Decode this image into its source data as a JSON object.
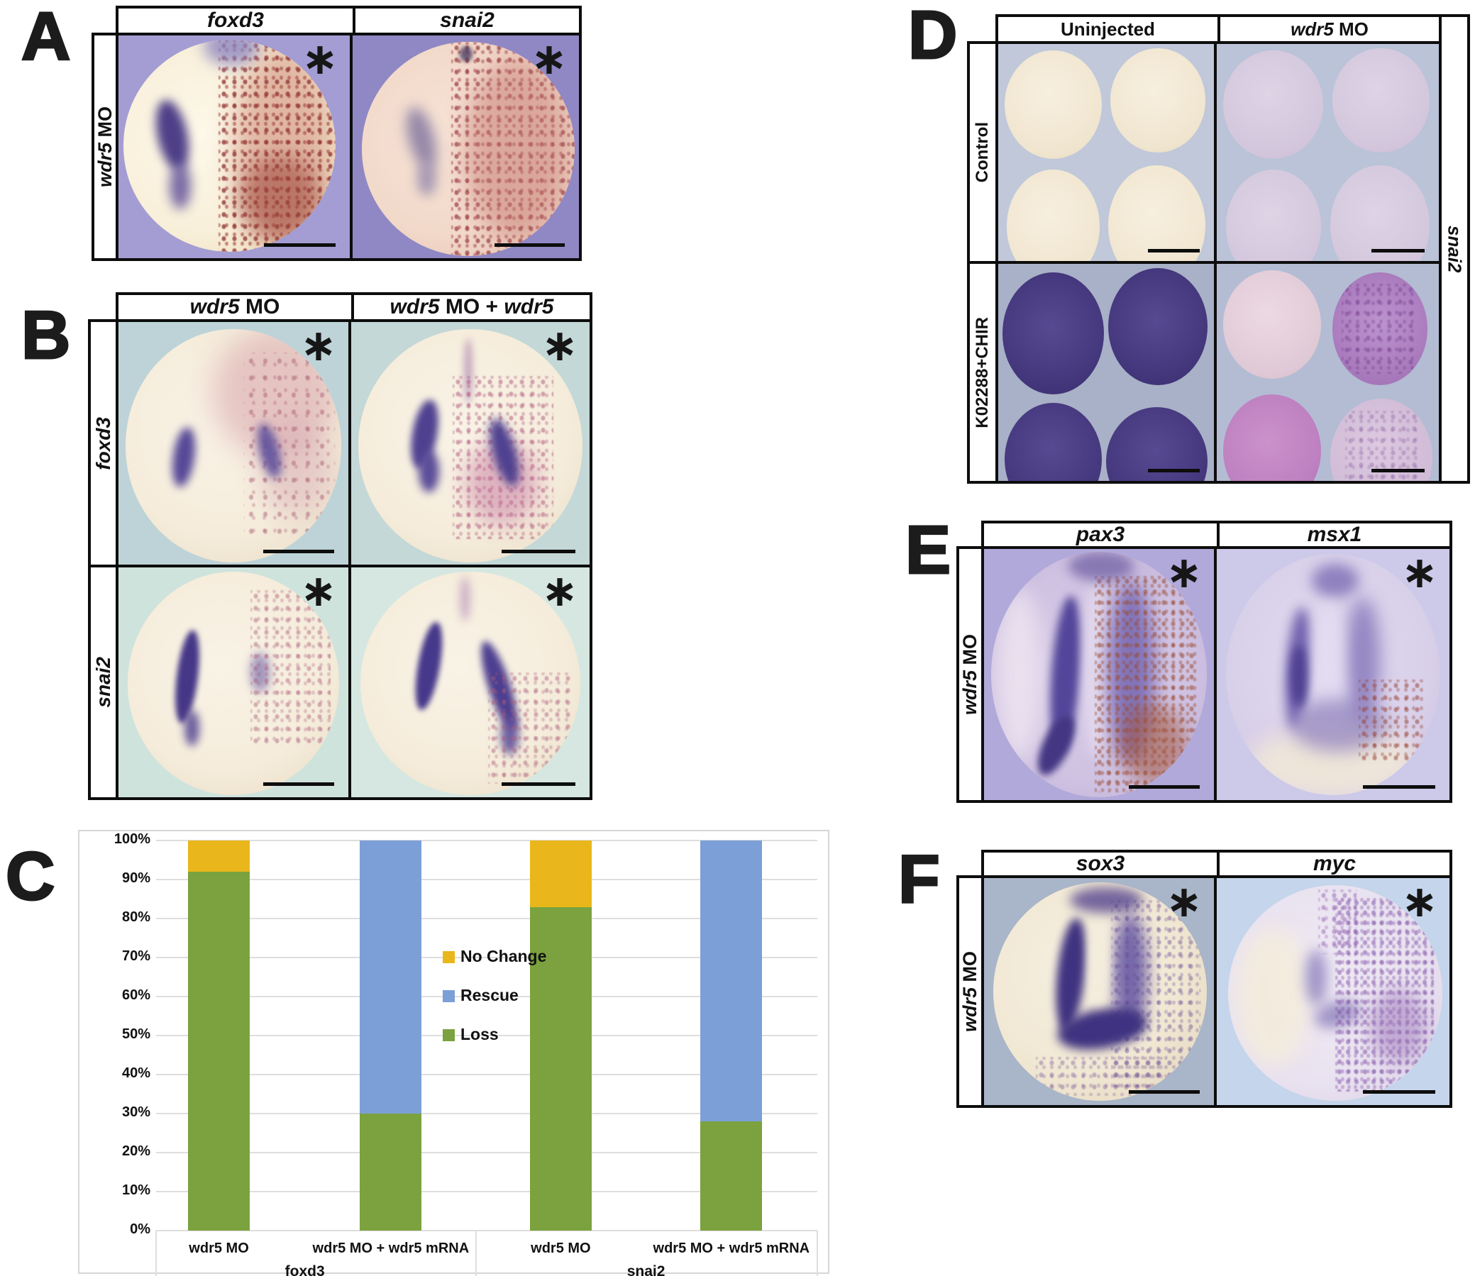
{
  "panel_a": {
    "label": "A",
    "columns": [
      "foxd3",
      "snai2"
    ],
    "row_gene": "wdr5",
    "row_suffix": " MO"
  },
  "panel_b": {
    "label": "B",
    "col1_gene": "wdr5",
    "col1_suffix": " MO",
    "col2_gene1": "wdr5",
    "col2_mid": " MO + ",
    "col2_gene2": "wdr5",
    "rows": [
      "foxd3",
      "snai2"
    ]
  },
  "panel_c": {
    "label": "C"
  },
  "panel_d": {
    "label": "D",
    "col1": "Uninjected",
    "col2_gene": "wdr5",
    "col2_suffix": " MO",
    "row1": "Control",
    "row2": "K02288+CHIR",
    "side_label": "snai2"
  },
  "panel_e": {
    "label": "E",
    "columns": [
      "pax3",
      "msx1"
    ],
    "row_gene": "wdr5",
    "row_suffix": " MO"
  },
  "panel_f": {
    "label": "F",
    "columns": [
      "sox3",
      "myc"
    ],
    "row_gene": "wdr5",
    "row_suffix": " MO"
  },
  "marks": {
    "asterisk": "∗"
  },
  "chart_data": {
    "type": "bar",
    "subtype": "100%-stacked-column",
    "title": "",
    "xlabel": "",
    "ylabel": "",
    "ylim": [
      0,
      100
    ],
    "grid": true,
    "gridline_color": "#dedede",
    "y_ticks": [
      "0%",
      "10%",
      "20%",
      "30%",
      "40%",
      "50%",
      "60%",
      "70%",
      "80%",
      "90%",
      "100%"
    ],
    "categories": [
      "wdr5 MO",
      "wdr5 MO + wdr5 mRNA",
      "wdr5 MO",
      "wdr5 MO + wdr5 mRNA"
    ],
    "groups": [
      {
        "label": "foxd3",
        "categories": [
          "wdr5 MO",
          "wdr5 MO + wdr5 mRNA"
        ]
      },
      {
        "label": "snai2",
        "categories": [
          "wdr5 MO",
          "wdr5 MO + wdr5 mRNA"
        ]
      }
    ],
    "series": [
      {
        "name": "Loss",
        "color": "#7BA23E",
        "values": [
          92,
          30,
          83,
          28
        ]
      },
      {
        "name": "Rescue",
        "color": "#7D9FD7",
        "values": [
          0,
          70,
          0,
          72
        ]
      },
      {
        "name": "No Change",
        "color": "#E9B71B",
        "values": [
          8,
          0,
          17,
          0
        ]
      }
    ],
    "legend": [
      {
        "name": "No Change",
        "color": "#E9B71B"
      },
      {
        "name": "Rescue",
        "color": "#7D9FD7"
      },
      {
        "name": "Loss",
        "color": "#7BA23E"
      }
    ],
    "legend_position": "inside-right-middle"
  }
}
